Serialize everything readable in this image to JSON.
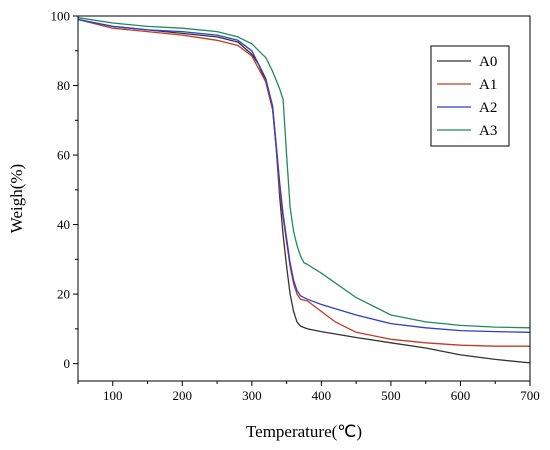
{
  "chart_data": {
    "type": "line",
    "xlabel": "Temperature(℃)",
    "ylabel": "Weigh(%)",
    "xlim": [
      50,
      700
    ],
    "ylim": [
      -5,
      100
    ],
    "xticks": [
      100,
      200,
      300,
      400,
      500,
      600,
      700
    ],
    "yticks": [
      0,
      20,
      40,
      60,
      80,
      100
    ],
    "legend_position": "top-right",
    "series": [
      {
        "name": "A0",
        "color": "#333333",
        "points": [
          [
            50,
            99
          ],
          [
            100,
            97
          ],
          [
            150,
            96
          ],
          [
            200,
            95
          ],
          [
            250,
            94
          ],
          [
            280,
            92.5
          ],
          [
            300,
            89
          ],
          [
            310,
            86
          ],
          [
            320,
            81
          ],
          [
            330,
            73
          ],
          [
            335,
            62
          ],
          [
            340,
            48
          ],
          [
            345,
            37
          ],
          [
            350,
            28
          ],
          [
            355,
            20
          ],
          [
            360,
            15
          ],
          [
            365,
            12
          ],
          [
            370,
            10.8
          ],
          [
            380,
            10
          ],
          [
            400,
            9.2
          ],
          [
            450,
            7.5
          ],
          [
            500,
            6
          ],
          [
            550,
            4.5
          ],
          [
            600,
            2.5
          ],
          [
            650,
            1.2
          ],
          [
            700,
            0.2
          ]
        ]
      },
      {
        "name": "A1",
        "color": "#c23b22",
        "points": [
          [
            50,
            99
          ],
          [
            100,
            96.5
          ],
          [
            150,
            95.5
          ],
          [
            200,
            94.5
          ],
          [
            250,
            93
          ],
          [
            280,
            91.5
          ],
          [
            300,
            88.5
          ],
          [
            320,
            81
          ],
          [
            330,
            73
          ],
          [
            335,
            62
          ],
          [
            340,
            50
          ],
          [
            345,
            42
          ],
          [
            350,
            35
          ],
          [
            355,
            28
          ],
          [
            360,
            23
          ],
          [
            365,
            20
          ],
          [
            370,
            18.5
          ],
          [
            380,
            18
          ],
          [
            400,
            15
          ],
          [
            420,
            12
          ],
          [
            450,
            9
          ],
          [
            500,
            7
          ],
          [
            550,
            6
          ],
          [
            600,
            5.3
          ],
          [
            650,
            5
          ],
          [
            700,
            5
          ]
        ]
      },
      {
        "name": "A2",
        "color": "#2b3fc9",
        "points": [
          [
            50,
            99
          ],
          [
            100,
            97
          ],
          [
            150,
            96
          ],
          [
            200,
            95.5
          ],
          [
            250,
            94.5
          ],
          [
            280,
            93
          ],
          [
            300,
            90
          ],
          [
            320,
            82
          ],
          [
            330,
            74
          ],
          [
            335,
            63
          ],
          [
            340,
            52
          ],
          [
            345,
            43
          ],
          [
            350,
            36
          ],
          [
            355,
            29
          ],
          [
            360,
            24
          ],
          [
            365,
            21
          ],
          [
            370,
            19.5
          ],
          [
            380,
            18.5
          ],
          [
            400,
            17
          ],
          [
            450,
            14
          ],
          [
            500,
            11.5
          ],
          [
            550,
            10.3
          ],
          [
            600,
            9.5
          ],
          [
            650,
            9.2
          ],
          [
            700,
            9
          ]
        ]
      },
      {
        "name": "A3",
        "color": "#1e8a5e",
        "points": [
          [
            50,
            99.5
          ],
          [
            100,
            98
          ],
          [
            150,
            97
          ],
          [
            200,
            96.5
          ],
          [
            250,
            95.5
          ],
          [
            280,
            94
          ],
          [
            300,
            92
          ],
          [
            320,
            88
          ],
          [
            330,
            84
          ],
          [
            340,
            79
          ],
          [
            345,
            76
          ],
          [
            350,
            60
          ],
          [
            355,
            45
          ],
          [
            360,
            38
          ],
          [
            365,
            34
          ],
          [
            370,
            31
          ],
          [
            375,
            29
          ],
          [
            380,
            28.5
          ],
          [
            400,
            26
          ],
          [
            450,
            19
          ],
          [
            500,
            14
          ],
          [
            550,
            12
          ],
          [
            600,
            11
          ],
          [
            650,
            10.5
          ],
          [
            700,
            10.3
          ]
        ]
      }
    ]
  }
}
